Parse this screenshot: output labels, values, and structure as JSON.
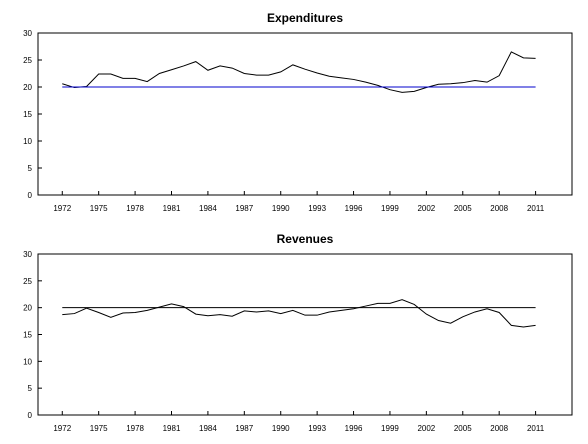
{
  "chart_data": [
    {
      "type": "line",
      "title": "Expenditures",
      "x": [
        1972,
        1973,
        1974,
        1975,
        1976,
        1977,
        1978,
        1979,
        1980,
        1981,
        1982,
        1983,
        1984,
        1985,
        1986,
        1987,
        1988,
        1989,
        1990,
        1991,
        1992,
        1993,
        1994,
        1995,
        1996,
        1997,
        1998,
        1999,
        2000,
        2001,
        2002,
        2003,
        2004,
        2005,
        2006,
        2007,
        2008,
        2009,
        2010,
        2011
      ],
      "xticks": [
        "1972",
        "1975",
        "1978",
        "1981",
        "1984",
        "1987",
        "1990",
        "1993",
        "1996",
        "1999",
        "2002",
        "2005",
        "2008",
        "2011"
      ],
      "ylim": [
        0,
        30
      ],
      "yticks": [
        "0",
        "5",
        "10",
        "15",
        "20",
        "25",
        "30"
      ],
      "series": [
        {
          "values": [
            20.6,
            19.9,
            20.1,
            22.4,
            22.4,
            21.6,
            21.6,
            21.0,
            22.5,
            23.2,
            23.9,
            24.7,
            23.1,
            23.9,
            23.5,
            22.5,
            22.2,
            22.2,
            22.8,
            24.1,
            23.3,
            22.6,
            22.0,
            21.7,
            21.4,
            20.9,
            20.3,
            19.5,
            19.0,
            19.2,
            19.9,
            20.5,
            20.6,
            20.8,
            21.2,
            20.9,
            22.1,
            26.5,
            25.4,
            25.3
          ]
        },
        {
          "values": [
            20,
            20,
            20,
            20,
            20,
            20,
            20,
            20,
            20,
            20,
            20,
            20,
            20,
            20,
            20,
            20,
            20,
            20,
            20,
            20,
            20,
            20,
            20,
            20,
            20,
            20,
            20,
            20,
            20,
            20,
            20,
            20,
            20,
            20,
            20,
            20,
            20,
            20,
            20,
            20
          ]
        }
      ],
      "colors": {
        "series": "#000000",
        "reference": "#0000cc"
      }
    },
    {
      "type": "line",
      "title": "Revenues",
      "x": [
        1972,
        1973,
        1974,
        1975,
        1976,
        1977,
        1978,
        1979,
        1980,
        1981,
        1982,
        1983,
        1984,
        1985,
        1986,
        1987,
        1988,
        1989,
        1990,
        1991,
        1992,
        1993,
        1994,
        1995,
        1996,
        1997,
        1998,
        1999,
        2000,
        2001,
        2002,
        2003,
        2004,
        2005,
        2006,
        2007,
        2008,
        2009,
        2010,
        2011
      ],
      "xticks": [
        "1972",
        "1975",
        "1978",
        "1981",
        "1984",
        "1987",
        "1990",
        "1993",
        "1996",
        "1999",
        "2002",
        "2005",
        "2008",
        "2011"
      ],
      "ylim": [
        0,
        30
      ],
      "yticks": [
        "0",
        "5",
        "10",
        "15",
        "20",
        "25",
        "30"
      ],
      "series": [
        {
          "values": [
            18.7,
            18.9,
            19.9,
            19.1,
            18.2,
            19.0,
            19.1,
            19.5,
            20.1,
            20.7,
            20.2,
            18.8,
            18.5,
            18.7,
            18.4,
            19.4,
            19.2,
            19.4,
            18.9,
            19.5,
            18.6,
            18.6,
            19.2,
            19.5,
            19.8,
            20.3,
            20.8,
            20.8,
            21.5,
            20.6,
            18.8,
            17.6,
            17.1,
            18.3,
            19.2,
            19.8,
            19.1,
            16.7,
            16.4,
            16.7
          ]
        },
        {
          "values": [
            20,
            20,
            20,
            20,
            20,
            20,
            20,
            20,
            20,
            20,
            20,
            20,
            20,
            20,
            20,
            20,
            20,
            20,
            20,
            20,
            20,
            20,
            20,
            20,
            20,
            20,
            20,
            20,
            20,
            20,
            20,
            20,
            20,
            20,
            20,
            20,
            20,
            20,
            20,
            20
          ]
        }
      ],
      "colors": {
        "series": "#000000",
        "reference": "#000000"
      }
    }
  ]
}
